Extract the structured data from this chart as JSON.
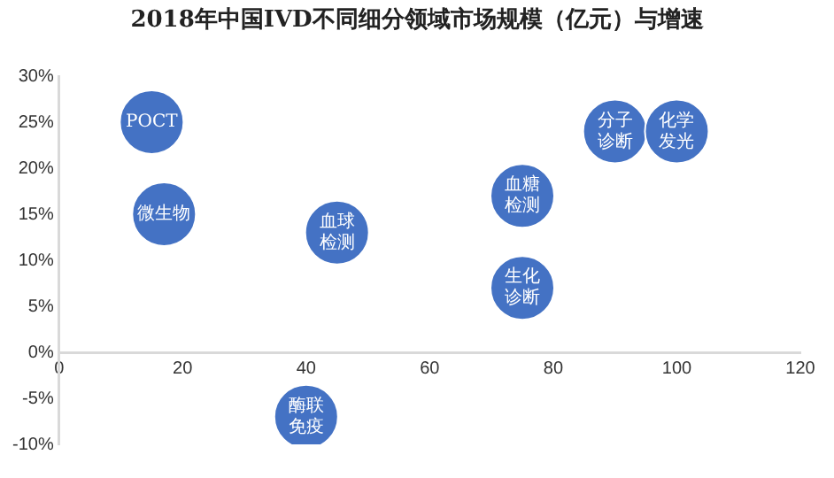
{
  "chart_data": {
    "type": "bubble",
    "title": "2018年中国IVD不同细分领域市场规模（亿元）与增速",
    "x": [
      15,
      17,
      45,
      40,
      75,
      75,
      90,
      100
    ],
    "series": [
      {
        "color": "#4472c4",
        "values": [
          25,
          15,
          13,
          -7,
          17,
          7,
          24,
          24
        ],
        "sizes": [
          1,
          1,
          1,
          1,
          1,
          1,
          1,
          1
        ]
      }
    ],
    "xlim": [
      0,
      120
    ],
    "xticks": [
      0,
      20,
      40,
      60,
      80,
      100,
      120
    ],
    "ylim": [
      -10,
      30
    ],
    "yticks": [
      {
        "value": -10,
        "label": "-10%"
      },
      {
        "value": -5,
        "label": "-5%"
      },
      {
        "value": 0,
        "label": "0%"
      },
      {
        "value": 5,
        "label": "5%"
      },
      {
        "value": 10,
        "label": "10%"
      },
      {
        "value": 15,
        "label": "15%"
      },
      {
        "value": 20,
        "label": "20%"
      },
      {
        "value": 25,
        "label": "25%"
      },
      {
        "value": 30,
        "label": "30%"
      }
    ],
    "grid": false,
    "legend": false,
    "annotations": [
      {
        "text": "POCT",
        "x": 15,
        "y": 25
      },
      {
        "text": "微生物",
        "x": 17,
        "y": 15
      },
      {
        "text": "血球检测",
        "x": 45,
        "y": 13
      },
      {
        "text": "酶联免疫",
        "x": 40,
        "y": -7
      },
      {
        "text": "血糖检测",
        "x": 75,
        "y": 17
      },
      {
        "text": "生化诊断",
        "x": 75,
        "y": 7
      },
      {
        "text": "分子诊断",
        "x": 90,
        "y": 24
      },
      {
        "text": "化学发光",
        "x": 100,
        "y": 24
      }
    ]
  }
}
